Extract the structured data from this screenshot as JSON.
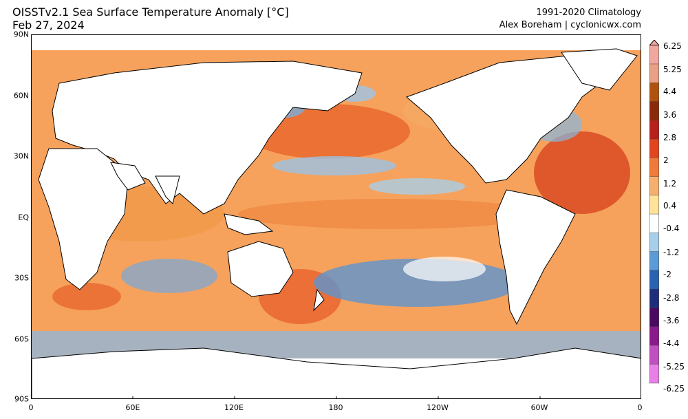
{
  "header": {
    "title_line1": "OISSTv2.1 Sea Surface Temperature Anomaly [°C]",
    "title_line2": "Feb 27, 2024",
    "credit_line1": "1991-2020 Climatology",
    "credit_line2": "Alex Boreham | cyclonicwx.com"
  },
  "map": {
    "lat_labels": [
      "90N",
      "60N",
      "30N",
      "EQ",
      "30S",
      "60S",
      "90S"
    ],
    "lon_labels": [
      "0",
      "60E",
      "120E",
      "180",
      "120W",
      "60W",
      "0"
    ],
    "ocean_base_color": "#f7a35a",
    "land_color": "#ffffff",
    "coast_color": "#000000"
  },
  "colorbar": {
    "labels": [
      "6.25",
      "5.25",
      "4.4",
      "3.6",
      "2.8",
      "2",
      "1.2",
      "0.4",
      "-0.4",
      "-1.2",
      "-2",
      "-2.8",
      "-3.6",
      "-4.4",
      "-5.25",
      "-6.25"
    ],
    "colors": [
      "#f0a7a0",
      "#e8a086",
      "#b0520f",
      "#8a2a0a",
      "#b8201a",
      "#e0451f",
      "#f07a3a",
      "#f5b070",
      "#ffe39a",
      "#ffffff",
      "#a8cfea",
      "#5c9bd5",
      "#2a62b0",
      "#1e2e7a",
      "#4a0a60",
      "#8a1a8a",
      "#c050c0",
      "#e880e8"
    ]
  }
}
